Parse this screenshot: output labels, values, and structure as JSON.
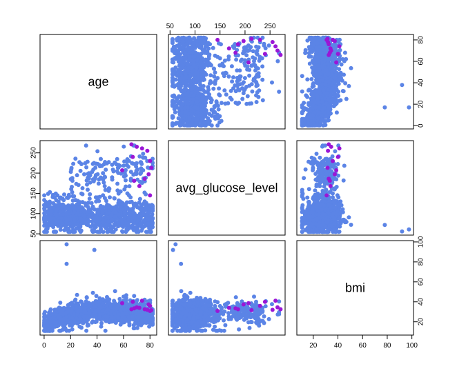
{
  "chart_data": {
    "type": "scatter",
    "subtype": "scatterplot-matrix",
    "variables": [
      {
        "name": "age",
        "range": [
          0,
          82
        ],
        "ticks": [
          0,
          20,
          40,
          60,
          80
        ]
      },
      {
        "name": "avg_glucose_level",
        "range": [
          55,
          272
        ],
        "ticks": [
          50,
          100,
          150,
          200,
          250
        ]
      },
      {
        "name": "bmi",
        "range": [
          10,
          98
        ],
        "ticks": [
          20,
          40,
          60,
          80,
          100
        ]
      }
    ],
    "colors": {
      "majority": "#5b84e6",
      "minority": "#9a17d6"
    },
    "highlighted_points_age_glucose": [
      [
        66,
        271
      ],
      [
        70,
        265
      ],
      [
        74,
        261
      ],
      [
        78,
        255
      ],
      [
        80,
        230
      ],
      [
        81,
        213
      ],
      [
        79,
        197
      ],
      [
        76,
        186
      ],
      [
        68,
        181
      ],
      [
        59,
        207
      ],
      [
        72,
        168
      ],
      [
        80,
        145
      ],
      [
        67,
        240
      ]
    ],
    "outliers_bmi": [
      {
        "age": 17,
        "avg_glucose_level": 61,
        "bmi": 97.6
      },
      {
        "age": 38,
        "avg_glucose_level": 56,
        "bmi": 92
      },
      {
        "age": 17,
        "avg_glucose_level": 72,
        "bmi": 78
      }
    ]
  }
}
